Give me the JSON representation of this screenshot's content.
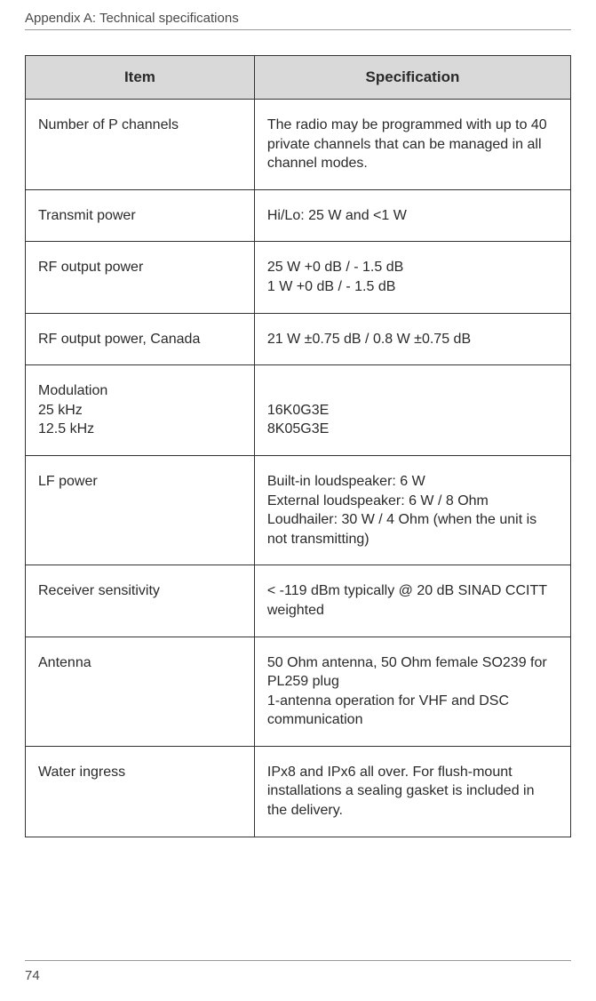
{
  "header": "Appendix A:  Technical specifications",
  "pageNumber": "74",
  "table": {
    "columns": [
      "Item",
      "Specification"
    ],
    "rows": [
      {
        "item": "Number of P channels",
        "spec": "The radio may be programmed with up to 40 private channels that can be managed in all channel modes."
      },
      {
        "item": "Transmit power",
        "spec": "Hi/Lo: 25 W and <1 W"
      },
      {
        "item": "RF output power",
        "specLines": [
          "25 W +0 dB / - 1.5 dB",
          "1 W +0 dB / - 1.5 dB"
        ],
        "specGap": true
      },
      {
        "item": "RF output power, Canada",
        "spec": "21 W ±0.75 dB / 0.8 W ±0.75 dB"
      },
      {
        "itemLines": [
          "Modulation",
          "25 kHz",
          "12.5 kHz"
        ],
        "specLines": [
          "",
          "16K0G3E",
          "8K05G3E"
        ]
      },
      {
        "item": "LF power",
        "specLines": [
          "Built-in loudspeaker: 6 W",
          "External loudspeaker: 6 W / 8 Ohm",
          "Loudhailer: 30 W / 4 Ohm (when the unit is not transmitting)"
        ]
      },
      {
        "item": "Receiver sensitivity",
        "spec": "< -119 dBm typically @ 20 dB SINAD CCITT weighted"
      },
      {
        "item": "Antenna",
        "specLines": [
          "50 Ohm antenna, 50 Ohm female SO239 for PL259 plug",
          "1-antenna operation for VHF and DSC communication"
        ],
        "specGap": true
      },
      {
        "item": "Water ingress",
        "spec": "IPx8 and IPx6 all over. For flush-mount installations a sealing gasket is included in the delivery."
      }
    ]
  }
}
